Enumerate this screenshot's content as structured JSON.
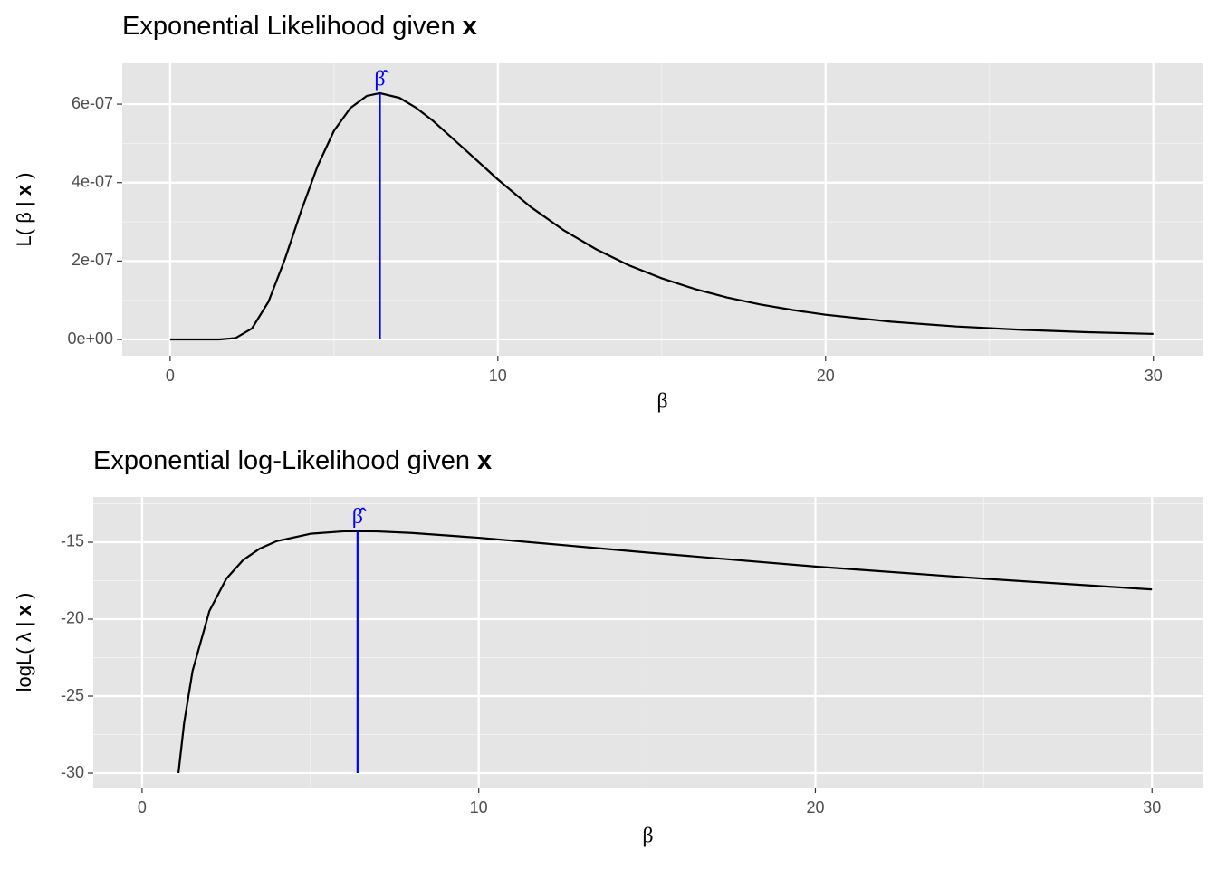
{
  "chart_data": [
    {
      "type": "line",
      "title": {
        "text": "Exponential Likelihood given",
        "bold": "x"
      },
      "xlabel": "β",
      "ylabel": [
        "L( β |",
        "x",
        ")"
      ],
      "x": [
        0,
        1,
        1.5,
        2,
        2.5,
        3,
        3.5,
        4,
        4.5,
        5,
        5.5,
        6,
        6.4,
        7,
        7.5,
        8,
        9,
        10,
        11,
        12,
        13,
        14,
        15,
        16,
        17,
        18,
        19,
        20,
        22,
        24,
        26,
        28,
        30
      ],
      "series": [
        {
          "color": "#000000",
          "values": [
            0,
            0,
            7.1e-11,
            3.52e-09,
            2.83e-08,
            9.59e-08,
            2.04e-07,
            3.28e-07,
            4.42e-07,
            5.32e-07,
            5.9e-07,
            6.21e-07,
            6.28e-07,
            6.16e-07,
            5.91e-07,
            5.59e-07,
            4.84e-07,
            4.08e-07,
            3.38e-07,
            2.79e-07,
            2.3e-07,
            1.89e-07,
            1.56e-07,
            1.29e-07,
            1.07e-07,
            8.94e-08,
            7.5e-08,
            6.31e-08,
            4.53e-08,
            3.31e-08,
            2.46e-08,
            1.85e-08,
            1.42e-08
          ]
        }
      ],
      "mle": {
        "x": 6.4,
        "y_from": 0,
        "y_to": 6.28e-07,
        "label": "β̂",
        "color": "#0000ff"
      },
      "xlim": [
        -1.46,
        31.5
      ],
      "xticks": [
        0,
        10,
        20,
        30
      ],
      "xminor": [
        5,
        15,
        25
      ],
      "ylim": [
        -4.15e-08,
        7.04e-07
      ],
      "yticks": [
        {
          "value": 0,
          "label": "0e+00"
        },
        {
          "value": 2e-07,
          "label": "2e-07"
        },
        {
          "value": 4e-07,
          "label": "4e-07"
        },
        {
          "value": 6e-07,
          "label": "6e-07"
        }
      ],
      "yminor": [
        1e-07,
        3e-07,
        5e-07
      ],
      "grid": true
    },
    {
      "type": "line",
      "title": {
        "text": "Exponential log-Likelihood given",
        "bold": "x"
      },
      "xlabel": "β",
      "ylabel": [
        "logL( λ |",
        "x",
        ")"
      ],
      "x": [
        1.08,
        1.25,
        1.5,
        2,
        2.5,
        3,
        3.5,
        4,
        5,
        6,
        6.4,
        7,
        8,
        10,
        12,
        15,
        20,
        25,
        30
      ],
      "series": [
        {
          "color": "#000000",
          "values": [
            -30.0,
            -26.72,
            -23.36,
            -19.47,
            -17.38,
            -16.16,
            -15.41,
            -14.93,
            -14.45,
            -14.29,
            -14.28,
            -14.3,
            -14.4,
            -14.71,
            -15.09,
            -15.67,
            -16.58,
            -17.37,
            -18.07
          ]
        }
      ],
      "mle": {
        "x": 6.4,
        "y_from": -30,
        "y_to": -14.28,
        "label": "β̂",
        "color": "#0000ff"
      },
      "xlim": [
        -1.45,
        31.5
      ],
      "xticks": [
        0,
        10,
        20,
        30
      ],
      "xminor": [
        5,
        15,
        25
      ],
      "ylim": [
        -30.94,
        -12.06
      ],
      "yticks": [
        -30,
        -25,
        -20,
        -15
      ],
      "yminor": [
        -27.5,
        -22.5,
        -17.5,
        -12.5
      ],
      "grid": true
    }
  ]
}
